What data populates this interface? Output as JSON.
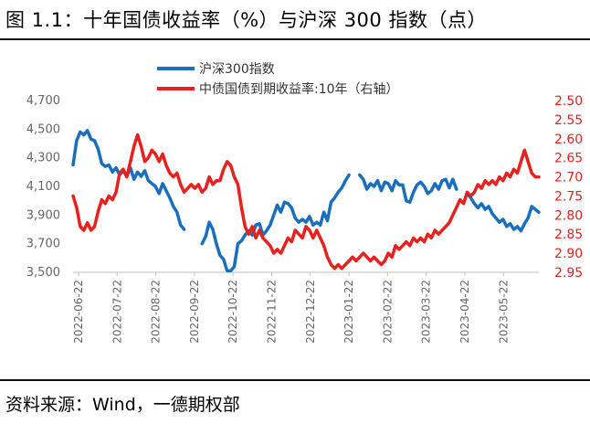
{
  "header": {
    "title": "图 1.1：十年国债收益率（%）与沪深 300 指数（点）"
  },
  "footer": {
    "source": "资料来源：Wind，一德期权部"
  },
  "colors": {
    "series_index": "#1a6fbd",
    "series_yield": "#e8211d"
  },
  "chart_data": {
    "type": "line",
    "legend_position": "top-center",
    "grid": false,
    "x_labels": [
      "2022-06-22",
      "2022-07-22",
      "2022-08-22",
      "2022-09-22",
      "2022-10-22",
      "2022-11-22",
      "2022-12-22",
      "2023-01-22",
      "2023-02-22",
      "2023-03-22",
      "2023-04-22",
      "2023-05-22"
    ],
    "left_axis": {
      "ylim": [
        3500,
        4700
      ],
      "ticks": [
        "3,500",
        "3,700",
        "3,900",
        "4,100",
        "4,300",
        "4,500",
        "4,700"
      ]
    },
    "right_axis": {
      "ylim": [
        2.95,
        2.5
      ],
      "inverted": true,
      "ticks": [
        "2.50",
        "2.55",
        "2.60",
        "2.65",
        "2.70",
        "2.75",
        "2.80",
        "2.85",
        "2.90",
        "2.95"
      ]
    },
    "series": [
      {
        "name": "沪深300指数",
        "axis": "left",
        "points": [
          [
            0.0,
            4250
          ],
          [
            0.5,
            4420
          ],
          [
            1.0,
            4480
          ],
          [
            1.5,
            4460
          ],
          [
            2.0,
            4490
          ],
          [
            2.5,
            4430
          ],
          [
            3.0,
            4420
          ],
          [
            3.5,
            4360
          ],
          [
            4.0,
            4260
          ],
          [
            4.5,
            4240
          ],
          [
            5.0,
            4250
          ],
          [
            5.5,
            4200
          ],
          [
            6.0,
            4230
          ],
          [
            6.5,
            4180
          ],
          [
            7.0,
            4210
          ],
          [
            7.5,
            4170
          ],
          [
            8.0,
            4230
          ],
          [
            8.5,
            4150
          ],
          [
            9.0,
            4200
          ],
          [
            9.5,
            4170
          ],
          [
            10.0,
            4210
          ],
          [
            10.5,
            4140
          ],
          [
            11.0,
            4120
          ],
          [
            11.5,
            4100
          ],
          [
            12.0,
            4050
          ],
          [
            12.5,
            4120
          ],
          [
            13.0,
            4070
          ],
          [
            13.5,
            4020
          ],
          [
            14.0,
            3960
          ],
          [
            14.5,
            3920
          ],
          [
            15.0,
            3830
          ],
          [
            15.5,
            3800
          ],
          null,
          [
            18.0,
            3700
          ],
          [
            18.5,
            3750
          ],
          [
            19.0,
            3850
          ],
          [
            19.5,
            3800
          ],
          [
            20.0,
            3700
          ],
          [
            20.5,
            3620
          ],
          [
            21.0,
            3590
          ],
          [
            21.5,
            3510
          ],
          [
            22.0,
            3510
          ],
          [
            22.5,
            3540
          ],
          [
            23.0,
            3700
          ],
          [
            23.5,
            3720
          ],
          [
            24.0,
            3760
          ],
          [
            24.5,
            3790
          ],
          [
            25.0,
            3760
          ],
          [
            25.5,
            3830
          ],
          [
            26.0,
            3840
          ],
          [
            26.5,
            3760
          ],
          [
            27.0,
            3790
          ],
          [
            27.5,
            3830
          ],
          [
            28.0,
            3900
          ],
          [
            28.5,
            3970
          ],
          [
            29.0,
            3920
          ],
          [
            29.5,
            3990
          ],
          [
            30.0,
            3980
          ],
          [
            30.5,
            3950
          ],
          [
            31.0,
            3880
          ],
          [
            31.5,
            3850
          ],
          [
            32.0,
            3870
          ],
          [
            32.5,
            3850
          ],
          [
            33.0,
            3890
          ],
          [
            33.5,
            3830
          ],
          [
            34.0,
            3850
          ],
          [
            34.5,
            3830
          ],
          [
            35.0,
            3920
          ],
          [
            35.5,
            3860
          ],
          [
            36.0,
            3990
          ],
          [
            36.5,
            4020
          ],
          [
            37.0,
            4060
          ],
          [
            37.5,
            4090
          ],
          [
            38.0,
            4140
          ],
          [
            38.5,
            4180
          ],
          null,
          [
            40.0,
            4180
          ],
          [
            40.5,
            4150
          ],
          [
            41.0,
            4080
          ],
          [
            41.5,
            4120
          ],
          [
            42.0,
            4100
          ],
          [
            42.5,
            4140
          ],
          [
            43.0,
            4070
          ],
          [
            43.5,
            4130
          ],
          [
            44.0,
            4120
          ],
          [
            44.5,
            4070
          ],
          [
            45.0,
            4140
          ],
          [
            45.5,
            4110
          ],
          [
            46.0,
            4110
          ],
          [
            46.5,
            4000
          ],
          [
            47.0,
            3990
          ],
          [
            47.5,
            4060
          ],
          [
            48.0,
            4110
          ],
          [
            48.5,
            4130
          ],
          [
            49.0,
            4100
          ],
          [
            49.5,
            4050
          ],
          [
            50.0,
            4070
          ],
          [
            50.5,
            4120
          ],
          [
            51.0,
            4080
          ],
          [
            51.5,
            4140
          ],
          [
            52.0,
            4150
          ],
          [
            52.5,
            4090
          ],
          [
            53.0,
            4150
          ],
          [
            53.5,
            4080
          ],
          null,
          [
            55.0,
            4050
          ],
          [
            55.5,
            4020
          ],
          [
            56.0,
            3980
          ],
          [
            56.5,
            3950
          ],
          [
            57.0,
            3980
          ],
          [
            57.5,
            3940
          ],
          [
            58.0,
            3960
          ],
          [
            58.5,
            3910
          ],
          [
            59.0,
            3880
          ],
          [
            59.5,
            3850
          ],
          [
            60.0,
            3870
          ],
          [
            60.5,
            3820
          ],
          [
            61.0,
            3840
          ],
          [
            61.5,
            3800
          ],
          [
            62.0,
            3820
          ],
          [
            62.5,
            3790
          ],
          [
            63.0,
            3840
          ],
          [
            63.5,
            3880
          ],
          [
            64.0,
            3960
          ],
          [
            64.5,
            3940
          ],
          [
            65.0,
            3920
          ]
        ]
      },
      {
        "name": "中债国债到期收益率:10年（右轴）",
        "axis": "right",
        "points": [
          [
            0.0,
            2.75
          ],
          [
            0.5,
            2.78
          ],
          [
            1.0,
            2.83
          ],
          [
            1.5,
            2.84
          ],
          [
            2.0,
            2.82
          ],
          [
            2.5,
            2.84
          ],
          [
            3.0,
            2.83
          ],
          [
            3.5,
            2.79
          ],
          [
            4.0,
            2.76
          ],
          [
            4.5,
            2.77
          ],
          [
            5.0,
            2.75
          ],
          [
            5.5,
            2.76
          ],
          [
            6.0,
            2.74
          ],
          [
            6.5,
            2.69
          ],
          [
            7.0,
            2.68
          ],
          [
            7.5,
            2.7
          ],
          [
            8.0,
            2.66
          ],
          [
            8.5,
            2.62
          ],
          [
            9.0,
            2.59
          ],
          [
            9.5,
            2.62
          ],
          [
            10.0,
            2.66
          ],
          [
            10.5,
            2.65
          ],
          [
            11.0,
            2.63
          ],
          [
            11.5,
            2.64
          ],
          [
            12.0,
            2.66
          ],
          [
            12.5,
            2.64
          ],
          [
            13.0,
            2.67
          ],
          [
            13.5,
            2.69
          ],
          [
            14.0,
            2.7
          ],
          [
            14.5,
            2.69
          ],
          [
            15.0,
            2.72
          ],
          [
            15.5,
            2.74
          ],
          [
            16.0,
            2.73
          ],
          [
            16.5,
            2.72
          ],
          [
            17.0,
            2.73
          ],
          [
            17.5,
            2.72
          ],
          [
            18.0,
            2.74
          ],
          [
            18.5,
            2.73
          ],
          [
            19.0,
            2.7
          ],
          [
            19.5,
            2.72
          ],
          [
            20.0,
            2.71
          ],
          [
            20.5,
            2.71
          ],
          [
            21.0,
            2.68
          ],
          [
            21.5,
            2.66
          ],
          [
            22.0,
            2.67
          ],
          [
            22.5,
            2.7
          ],
          [
            23.0,
            2.72
          ],
          [
            23.5,
            2.78
          ],
          [
            24.0,
            2.83
          ],
          [
            24.5,
            2.85
          ],
          [
            25.0,
            2.83
          ],
          [
            25.5,
            2.86
          ],
          [
            26.0,
            2.84
          ],
          [
            26.5,
            2.86
          ],
          [
            27.0,
            2.87
          ],
          [
            27.5,
            2.88
          ],
          [
            28.0,
            2.9
          ],
          [
            28.5,
            2.89
          ],
          [
            29.0,
            2.9
          ],
          [
            29.5,
            2.88
          ],
          [
            30.0,
            2.86
          ],
          [
            30.5,
            2.87
          ],
          [
            31.0,
            2.84
          ],
          [
            31.5,
            2.85
          ],
          [
            32.0,
            2.86
          ],
          [
            32.5,
            2.83
          ],
          [
            33.0,
            2.84
          ],
          [
            33.5,
            2.86
          ],
          [
            34.0,
            2.84
          ],
          [
            34.5,
            2.86
          ],
          [
            35.0,
            2.88
          ],
          [
            35.5,
            2.91
          ],
          [
            36.0,
            2.93
          ],
          [
            36.5,
            2.94
          ],
          [
            37.0,
            2.93
          ],
          [
            37.5,
            2.94
          ],
          [
            38.0,
            2.93
          ],
          [
            38.5,
            2.92
          ],
          [
            39.0,
            2.91
          ],
          [
            39.5,
            2.92
          ],
          [
            40.0,
            2.91
          ],
          [
            40.5,
            2.9
          ],
          [
            41.0,
            2.91
          ],
          [
            41.5,
            2.92
          ],
          [
            42.0,
            2.91
          ],
          [
            42.5,
            2.92
          ],
          [
            43.0,
            2.93
          ],
          [
            43.5,
            2.92
          ],
          [
            44.0,
            2.9
          ],
          [
            44.5,
            2.91
          ],
          [
            45.0,
            2.88
          ],
          [
            45.5,
            2.89
          ],
          [
            46.0,
            2.88
          ],
          [
            46.5,
            2.87
          ],
          [
            47.0,
            2.88
          ],
          [
            47.5,
            2.86
          ],
          [
            48.0,
            2.87
          ],
          [
            48.5,
            2.86
          ],
          [
            49.0,
            2.87
          ],
          [
            49.5,
            2.85
          ],
          [
            50.0,
            2.86
          ],
          [
            50.5,
            2.84
          ],
          [
            51.0,
            2.85
          ],
          [
            51.5,
            2.84
          ],
          [
            52.0,
            2.83
          ],
          [
            52.5,
            2.82
          ],
          [
            53.0,
            2.8
          ],
          [
            53.5,
            2.78
          ],
          [
            54.0,
            2.76
          ],
          [
            54.5,
            2.77
          ],
          [
            55.0,
            2.74
          ],
          [
            55.5,
            2.75
          ],
          [
            56.0,
            2.74
          ],
          [
            56.5,
            2.72
          ],
          [
            57.0,
            2.73
          ],
          [
            57.5,
            2.71
          ],
          [
            58.0,
            2.72
          ],
          [
            58.5,
            2.71
          ],
          [
            59.0,
            2.72
          ],
          [
            59.5,
            2.7
          ],
          [
            60.0,
            2.71
          ],
          [
            60.5,
            2.69
          ],
          [
            61.0,
            2.7
          ],
          [
            61.5,
            2.68
          ],
          [
            62.0,
            2.69
          ],
          [
            62.5,
            2.66
          ],
          [
            63.0,
            2.63
          ],
          [
            63.5,
            2.66
          ],
          [
            64.0,
            2.69
          ],
          [
            64.5,
            2.7
          ],
          [
            65.0,
            2.7
          ]
        ]
      }
    ]
  }
}
